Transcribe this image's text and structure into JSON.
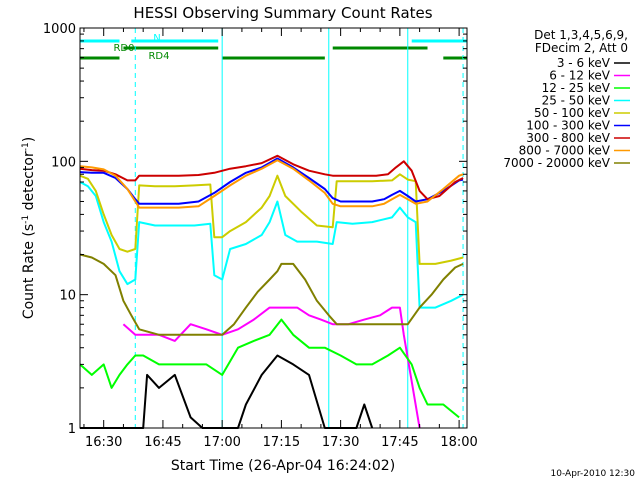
{
  "chart_data": {
    "type": "line",
    "title": "HESSI Observing Summary Count Rates",
    "xlabel": "Start Time (26-Apr-04 16:24:02)",
    "ylabel_main": "Count Rate (s",
    "ylabel_sup1": "-1",
    "ylabel_mid": " detector",
    "ylabel_sup2": "-1",
    "ylabel_end": ")",
    "yscale": "log",
    "ylim": [
      1,
      1000
    ],
    "xlim_min": [
      0,
      98
    ],
    "x_unit": "minutes since 16:24:02",
    "yticks": [
      {
        "v": 1,
        "label": "1"
      },
      {
        "v": 10,
        "label": "10"
      },
      {
        "v": 100,
        "label": "100"
      },
      {
        "v": 1000,
        "label": "1000"
      }
    ],
    "xticks": [
      {
        "t": 6,
        "label": "16:30"
      },
      {
        "t": 21,
        "label": "16:45"
      },
      {
        "t": 36,
        "label": "17:00"
      },
      {
        "t": 51,
        "label": "17:15"
      },
      {
        "t": 66,
        "label": "17:30"
      },
      {
        "t": 81,
        "label": "17:45"
      },
      {
        "t": 96,
        "label": "18:00"
      }
    ],
    "legend_header": [
      "Det 1,3,4,5,6,9,",
      "FDecim 2, Att 0"
    ],
    "legend_placement": "right",
    "series": [
      {
        "name": "3 - 6 keV",
        "color": "#000000",
        "points": [
          [
            0,
            1
          ],
          [
            16,
            1
          ],
          [
            17,
            2.5
          ],
          [
            20,
            2
          ],
          [
            24,
            2.5
          ],
          [
            28,
            1.2
          ],
          [
            31,
            1
          ],
          [
            40,
            1
          ],
          [
            42,
            1.5
          ],
          [
            46,
            2.5
          ],
          [
            50,
            3.5
          ],
          [
            54,
            3
          ],
          [
            58,
            2.5
          ],
          [
            62,
            1
          ],
          [
            70,
            1
          ],
          [
            72,
            1.5
          ],
          [
            74,
            1
          ]
        ]
      },
      {
        "name": "6 - 12 keV",
        "color": "#ff00ff",
        "points": [
          [
            11,
            6
          ],
          [
            14,
            5
          ],
          [
            17,
            5
          ],
          [
            20,
            5
          ],
          [
            24,
            4.5
          ],
          [
            28,
            6
          ],
          [
            32,
            5.5
          ],
          [
            36,
            5
          ],
          [
            40,
            5.5
          ],
          [
            44,
            6.5
          ],
          [
            48,
            8
          ],
          [
            52,
            8
          ],
          [
            55,
            8
          ],
          [
            58,
            7
          ],
          [
            61,
            6.5
          ],
          [
            64,
            6
          ],
          [
            68,
            6
          ],
          [
            72,
            6.5
          ],
          [
            76,
            7
          ],
          [
            79,
            8
          ],
          [
            81,
            8
          ],
          [
            82,
            5
          ],
          [
            86,
            1
          ]
        ]
      },
      {
        "name": "12 - 25 keV",
        "color": "#00ff00",
        "points": [
          [
            0,
            3
          ],
          [
            3,
            2.5
          ],
          [
            6,
            3
          ],
          [
            8,
            2
          ],
          [
            10,
            2.5
          ],
          [
            12,
            3
          ],
          [
            14,
            3.5
          ],
          [
            16,
            3.5
          ],
          [
            20,
            3
          ],
          [
            24,
            3
          ],
          [
            28,
            3
          ],
          [
            32,
            3
          ],
          [
            36,
            2.5
          ],
          [
            40,
            4
          ],
          [
            44,
            4.5
          ],
          [
            48,
            5
          ],
          [
            51,
            6.5
          ],
          [
            54,
            5
          ],
          [
            58,
            4
          ],
          [
            62,
            4
          ],
          [
            66,
            3.5
          ],
          [
            70,
            3
          ],
          [
            74,
            3
          ],
          [
            78,
            3.5
          ],
          [
            81,
            4
          ],
          [
            84,
            3
          ],
          [
            86,
            2
          ],
          [
            88,
            1.5
          ],
          [
            92,
            1.5
          ],
          [
            96,
            1.2
          ]
        ]
      },
      {
        "name": "25 - 50 keV",
        "color": "#00ffff",
        "points": [
          [
            0,
            70
          ],
          [
            2,
            65
          ],
          [
            4,
            55
          ],
          [
            6,
            35
          ],
          [
            8,
            25
          ],
          [
            10,
            15
          ],
          [
            12,
            12
          ],
          [
            14,
            13
          ],
          [
            15,
            35
          ],
          [
            19,
            33
          ],
          [
            24,
            33
          ],
          [
            29,
            33
          ],
          [
            33,
            34
          ],
          [
            34,
            14
          ],
          [
            36,
            13
          ],
          [
            38,
            22
          ],
          [
            42,
            24
          ],
          [
            46,
            28
          ],
          [
            48,
            35
          ],
          [
            50,
            50
          ],
          [
            52,
            28
          ],
          [
            55,
            25
          ],
          [
            60,
            25
          ],
          [
            64,
            24
          ],
          [
            65,
            35
          ],
          [
            69,
            34
          ],
          [
            74,
            35
          ],
          [
            79,
            38
          ],
          [
            81,
            45
          ],
          [
            83,
            38
          ],
          [
            85,
            35
          ],
          [
            86,
            8
          ],
          [
            90,
            8
          ],
          [
            94,
            9
          ],
          [
            97,
            10
          ]
        ]
      },
      {
        "name": "50 - 100 keV",
        "color": "#cccc00",
        "points": [
          [
            0,
            78
          ],
          [
            2,
            74
          ],
          [
            4,
            60
          ],
          [
            6,
            40
          ],
          [
            8,
            28
          ],
          [
            10,
            22
          ],
          [
            12,
            21
          ],
          [
            14,
            22
          ],
          [
            15,
            66
          ],
          [
            19,
            65
          ],
          [
            24,
            65
          ],
          [
            29,
            66
          ],
          [
            33,
            67
          ],
          [
            34,
            27
          ],
          [
            36,
            27
          ],
          [
            38,
            30
          ],
          [
            42,
            35
          ],
          [
            46,
            45
          ],
          [
            48,
            55
          ],
          [
            50,
            78
          ],
          [
            52,
            55
          ],
          [
            56,
            42
          ],
          [
            60,
            33
          ],
          [
            64,
            32
          ],
          [
            65,
            71
          ],
          [
            69,
            71
          ],
          [
            74,
            71
          ],
          [
            79,
            72
          ],
          [
            81,
            80
          ],
          [
            83,
            73
          ],
          [
            85,
            71
          ],
          [
            86,
            17
          ],
          [
            90,
            17
          ],
          [
            94,
            18
          ],
          [
            97,
            19
          ]
        ]
      },
      {
        "name": "100 - 300 keV",
        "color": "#0000ff",
        "points": [
          [
            0,
            83
          ],
          [
            3,
            82
          ],
          [
            6,
            82
          ],
          [
            9,
            75
          ],
          [
            12,
            62
          ],
          [
            14,
            52
          ],
          [
            15,
            48
          ],
          [
            20,
            48
          ],
          [
            25,
            48
          ],
          [
            30,
            50
          ],
          [
            34,
            58
          ],
          [
            38,
            70
          ],
          [
            42,
            82
          ],
          [
            46,
            90
          ],
          [
            50,
            105
          ],
          [
            54,
            90
          ],
          [
            58,
            75
          ],
          [
            62,
            62
          ],
          [
            64,
            53
          ],
          [
            66,
            50
          ],
          [
            70,
            50
          ],
          [
            74,
            50
          ],
          [
            77,
            52
          ],
          [
            79,
            56
          ],
          [
            81,
            60
          ],
          [
            83,
            55
          ],
          [
            85,
            50
          ],
          [
            88,
            52
          ],
          [
            92,
            60
          ],
          [
            96,
            72
          ],
          [
            97,
            73
          ]
        ]
      },
      {
        "name": "300 - 800 keV",
        "color": "#cc0000",
        "points": [
          [
            0,
            88
          ],
          [
            3,
            86
          ],
          [
            6,
            85
          ],
          [
            9,
            80
          ],
          [
            12,
            72
          ],
          [
            14,
            72
          ],
          [
            15,
            78
          ],
          [
            20,
            78
          ],
          [
            25,
            78
          ],
          [
            30,
            79
          ],
          [
            34,
            82
          ],
          [
            38,
            88
          ],
          [
            42,
            92
          ],
          [
            46,
            97
          ],
          [
            50,
            110
          ],
          [
            54,
            95
          ],
          [
            58,
            85
          ],
          [
            62,
            80
          ],
          [
            64,
            78
          ],
          [
            65,
            78
          ],
          [
            70,
            78
          ],
          [
            75,
            78
          ],
          [
            78,
            80
          ],
          [
            80,
            90
          ],
          [
            82,
            100
          ],
          [
            84,
            85
          ],
          [
            86,
            60
          ],
          [
            88,
            52
          ],
          [
            91,
            55
          ],
          [
            95,
            70
          ],
          [
            97,
            75
          ]
        ]
      },
      {
        "name": "800 - 7000 keV",
        "color": "#ff9900",
        "points": [
          [
            0,
            92
          ],
          [
            3,
            90
          ],
          [
            6,
            87
          ],
          [
            9,
            78
          ],
          [
            12,
            62
          ],
          [
            14,
            50
          ],
          [
            15,
            45
          ],
          [
            20,
            45
          ],
          [
            25,
            45
          ],
          [
            30,
            46
          ],
          [
            34,
            55
          ],
          [
            38,
            66
          ],
          [
            42,
            78
          ],
          [
            46,
            88
          ],
          [
            50,
            102
          ],
          [
            54,
            88
          ],
          [
            58,
            72
          ],
          [
            62,
            58
          ],
          [
            64,
            48
          ],
          [
            66,
            46
          ],
          [
            70,
            46
          ],
          [
            74,
            46
          ],
          [
            77,
            48
          ],
          [
            79,
            52
          ],
          [
            81,
            56
          ],
          [
            83,
            52
          ],
          [
            85,
            48
          ],
          [
            88,
            50
          ],
          [
            92,
            62
          ],
          [
            96,
            78
          ],
          [
            97,
            80
          ]
        ]
      },
      {
        "name": "7000 - 20000 keV",
        "color": "#808000",
        "points": [
          [
            0,
            20
          ],
          [
            3,
            19
          ],
          [
            6,
            17
          ],
          [
            9,
            14
          ],
          [
            11,
            9
          ],
          [
            13,
            7
          ],
          [
            15,
            5.5
          ],
          [
            20,
            5
          ],
          [
            25,
            5
          ],
          [
            30,
            5
          ],
          [
            34,
            5
          ],
          [
            36,
            5
          ],
          [
            39,
            6
          ],
          [
            42,
            8
          ],
          [
            45,
            10.5
          ],
          [
            48,
            13
          ],
          [
            50,
            15
          ],
          [
            51,
            17
          ],
          [
            54,
            17
          ],
          [
            57,
            13
          ],
          [
            60,
            9
          ],
          [
            63,
            7
          ],
          [
            65,
            6
          ],
          [
            70,
            6
          ],
          [
            75,
            6
          ],
          [
            80,
            6
          ],
          [
            83,
            6
          ],
          [
            86,
            8
          ],
          [
            89,
            10
          ],
          [
            92,
            13
          ],
          [
            95,
            16
          ],
          [
            97,
            17
          ]
        ]
      }
    ],
    "state_bars": [
      {
        "label": "N",
        "color": "#00ffff",
        "segments": [
          [
            0,
            10
          ],
          [
            13,
            35
          ],
          [
            84,
            98
          ]
        ]
      },
      {
        "label": "RD0",
        "color": "#008800",
        "segments": [
          [
            11,
            35
          ],
          [
            64,
            88
          ]
        ]
      },
      {
        "label": "RD4",
        "color": "#008800",
        "segments": [
          [
            0,
            10
          ],
          [
            36,
            62
          ],
          [
            92,
            98
          ]
        ]
      }
    ],
    "night_lines_solid": [
      0,
      36,
      63,
      83
    ],
    "night_lines_dashed": [
      14,
      97
    ]
  },
  "footer_date": "10-Apr-2010 12:30"
}
